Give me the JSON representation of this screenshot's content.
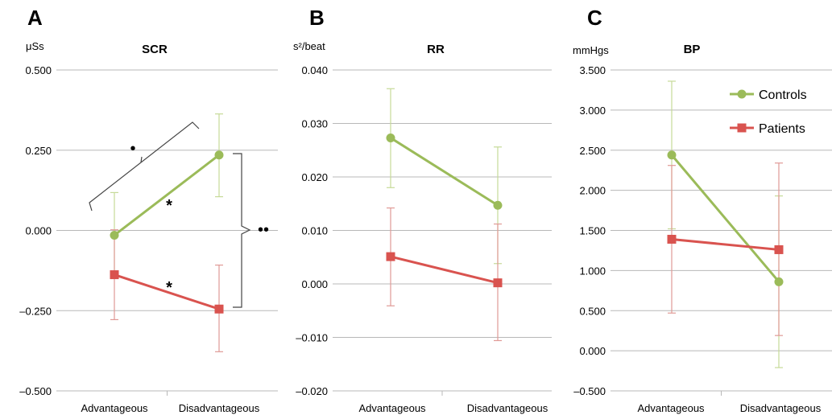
{
  "figure": {
    "categories": [
      "Advantageous",
      "Disadvantageous"
    ],
    "legend": {
      "entries": [
        {
          "name": "Controls",
          "color": "#9bbb59"
        },
        {
          "name": "Patients",
          "color": "#d9534f"
        }
      ],
      "placement": "top-right of panel C"
    }
  },
  "chart_data": [
    {
      "type": "line",
      "panel_letter": "A",
      "title": "SCR",
      "ylabel": "μSs",
      "categories": [
        "Advantageous",
        "Disadvantageous"
      ],
      "ylim": [
        -0.5,
        0.5
      ],
      "yticks": [
        -0.5,
        -0.25,
        0,
        0.25,
        0.5
      ],
      "ytick_labels": [
        "–0.500",
        "–0.250",
        "0.000",
        "0.250",
        "0.500"
      ],
      "grid": true,
      "series": [
        {
          "name": "Controls",
          "values": [
            -0.015,
            0.235
          ],
          "err_low": [
            -0.135,
            0.105
          ],
          "err_high": [
            0.118,
            0.363
          ]
        },
        {
          "name": "Patients",
          "values": [
            -0.138,
            -0.245
          ],
          "err_low": [
            -0.278,
            -0.378
          ],
          "err_high": [
            0.002,
            -0.108
          ]
        }
      ],
      "annotations": {
        "star": "*",
        "dot": "•",
        "dots": "••"
      }
    },
    {
      "type": "line",
      "panel_letter": "B",
      "title": "RR",
      "ylabel": "s²/beat",
      "categories": [
        "Advantageous",
        "Disadvantageous"
      ],
      "ylim": [
        -0.02,
        0.04
      ],
      "yticks": [
        -0.02,
        -0.01,
        0,
        0.01,
        0.02,
        0.03,
        0.04
      ],
      "ytick_labels": [
        "–0.020",
        "–0.010",
        "0.000",
        "0.010",
        "0.020",
        "0.030",
        "0.040"
      ],
      "grid": true,
      "series": [
        {
          "name": "Controls",
          "values": [
            0.0273,
            0.0147
          ],
          "err_low": [
            0.018,
            0.0038
          ],
          "err_high": [
            0.0365,
            0.0256
          ]
        },
        {
          "name": "Patients",
          "values": [
            0.0051,
            0.0002
          ],
          "err_low": [
            -0.0041,
            -0.0106
          ],
          "err_high": [
            0.0142,
            0.0112
          ]
        }
      ]
    },
    {
      "type": "line",
      "panel_letter": "C",
      "title": "BP",
      "ylabel": "mmHgs",
      "categories": [
        "Advantageous",
        "Disadvantageous"
      ],
      "ylim": [
        -0.5,
        3.5
      ],
      "yticks": [
        -0.5,
        0,
        0.5,
        1,
        1.5,
        2,
        2.5,
        3,
        3.5
      ],
      "ytick_labels": [
        "–0.500",
        "0.000",
        "0.500",
        "1.000",
        "1.500",
        "2.000",
        "2.500",
        "3.000",
        "3.500"
      ],
      "grid": true,
      "series": [
        {
          "name": "Controls",
          "values": [
            2.44,
            0.86
          ],
          "err_low": [
            1.52,
            -0.21
          ],
          "err_high": [
            3.36,
            1.93
          ]
        },
        {
          "name": "Patients",
          "values": [
            1.39,
            1.26
          ],
          "err_low": [
            0.47,
            0.19
          ],
          "err_high": [
            2.31,
            2.34
          ]
        }
      ]
    }
  ]
}
